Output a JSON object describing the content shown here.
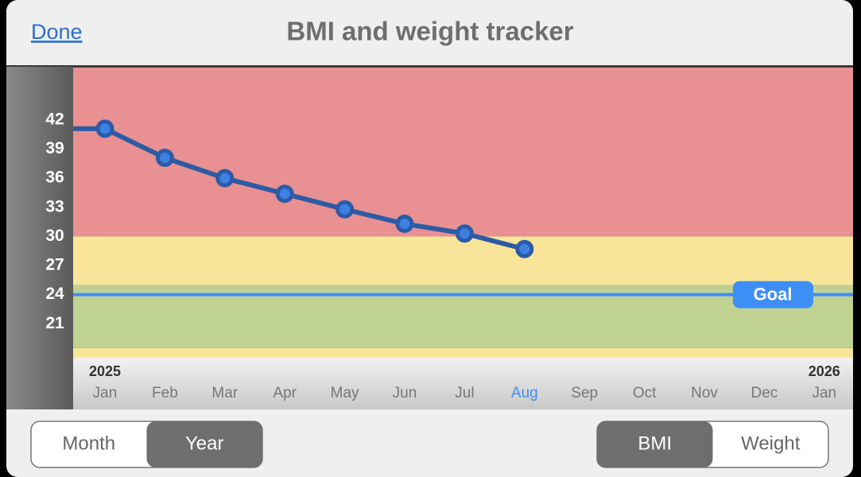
{
  "header": {
    "done": "Done",
    "title": "BMI and weight tracker"
  },
  "chart_data": {
    "type": "line",
    "categories": [
      "Jan",
      "Feb",
      "Mar",
      "Apr",
      "May",
      "Jun",
      "Jul",
      "Aug",
      "Sep",
      "Oct",
      "Nov",
      "Dec",
      "Jan"
    ],
    "year_labels": [
      "2025",
      "2026"
    ],
    "highlighted_category": 7,
    "highlight_color": "#3d8ef5",
    "values": [
      41.1,
      38.1,
      36,
      34.4,
      32.8,
      31.3,
      30.3,
      28.7,
      null,
      null,
      null,
      null,
      null
    ],
    "color": "#2c5ba6",
    "marker_color": "#3f80e4",
    "goal": {
      "label": "Goal",
      "value": 24,
      "color": "#3d8ef5"
    },
    "bands": [
      {
        "from": 30,
        "to": 47.4,
        "color": "#e89092"
      },
      {
        "from": 25,
        "to": 30,
        "color": "#f8e59a"
      },
      {
        "from": 18.5,
        "to": 25,
        "color": "#bfd292"
      },
      {
        "from": 17.5,
        "to": 18.5,
        "color": "#f8e59a"
      }
    ],
    "ylim": [
      17.5,
      47.4
    ],
    "yticks": [
      21,
      24,
      27,
      30,
      33,
      36,
      39,
      42
    ]
  },
  "controls": {
    "range": {
      "options": [
        "Month",
        "Year"
      ],
      "selected": 1
    },
    "metric": {
      "options": [
        "BMI",
        "Weight"
      ],
      "selected": 0
    }
  }
}
